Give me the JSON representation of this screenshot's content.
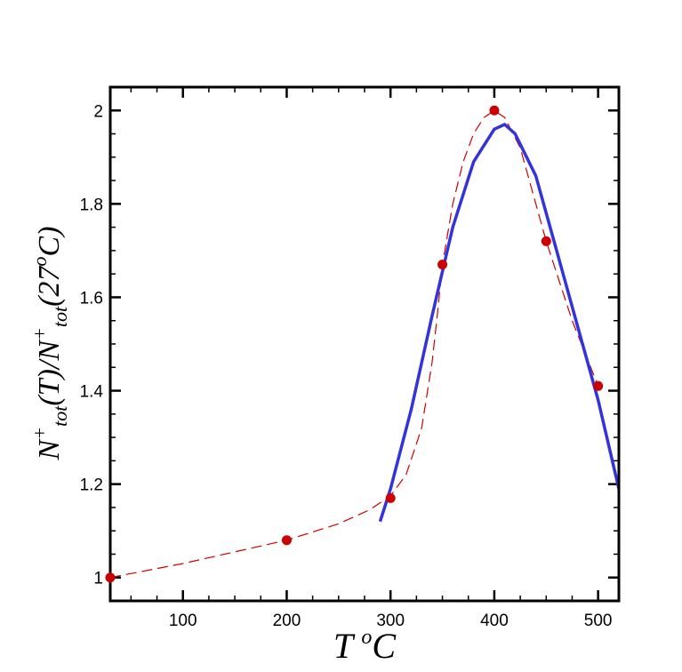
{
  "chart_data": {
    "type": "scatter",
    "xlabel": {
      "main": "T",
      "sup": "o",
      "unit": "C"
    },
    "ylabel": {
      "parts": [
        {
          "t": "N",
          "style": "italic"
        },
        {
          "t": "+",
          "style": "sup"
        },
        {
          "t": "tot",
          "style": "sub"
        },
        {
          "t": "(T)/N",
          "style": "italic"
        },
        {
          "t": "+",
          "style": "sup"
        },
        {
          "t": "tot",
          "style": "sub"
        },
        {
          "t": "(27",
          "style": "italic"
        },
        {
          "t": "o",
          "style": "sup"
        },
        {
          "t": "C)",
          "style": "italic"
        }
      ]
    },
    "xlim": [
      30,
      520
    ],
    "ylim": [
      0.95,
      2.05
    ],
    "x_ticks": [
      100,
      200,
      300,
      400,
      500
    ],
    "x_tick_labels": [
      "100",
      "200",
      "300",
      "400",
      "500"
    ],
    "y_ticks": [
      1,
      1.2,
      1.4,
      1.6,
      1.8,
      2
    ],
    "y_tick_labels": [
      "1",
      "1.2",
      "1.4",
      "1.6",
      "1.8",
      "2"
    ],
    "grid": false,
    "series": [
      {
        "kind": "points",
        "color": "#cc0000",
        "x": [
          30,
          200,
          300,
          350,
          400,
          450,
          500
        ],
        "y": [
          1.0,
          1.08,
          1.17,
          1.67,
          2.0,
          1.72,
          1.41
        ]
      },
      {
        "kind": "dashed-line",
        "color": "#cc0000",
        "x": [
          30,
          100,
          200,
          250,
          280,
          300,
          315,
          330,
          340,
          345,
          350,
          360,
          370,
          380,
          390,
          400,
          410,
          425,
          450,
          475,
          500
        ],
        "y": [
          1.0,
          1.03,
          1.08,
          1.115,
          1.145,
          1.175,
          1.22,
          1.32,
          1.46,
          1.56,
          1.67,
          1.8,
          1.89,
          1.95,
          1.985,
          2.0,
          1.985,
          1.92,
          1.72,
          1.55,
          1.41
        ]
      },
      {
        "kind": "solid-line",
        "color": "#3333dd",
        "x": [
          290,
          300,
          320,
          340,
          360,
          380,
          400,
          410,
          420,
          440,
          460,
          480,
          500,
          520
        ],
        "y": [
          1.12,
          1.19,
          1.36,
          1.56,
          1.75,
          1.89,
          1.96,
          1.97,
          1.95,
          1.86,
          1.7,
          1.54,
          1.38,
          1.19
        ]
      }
    ]
  }
}
